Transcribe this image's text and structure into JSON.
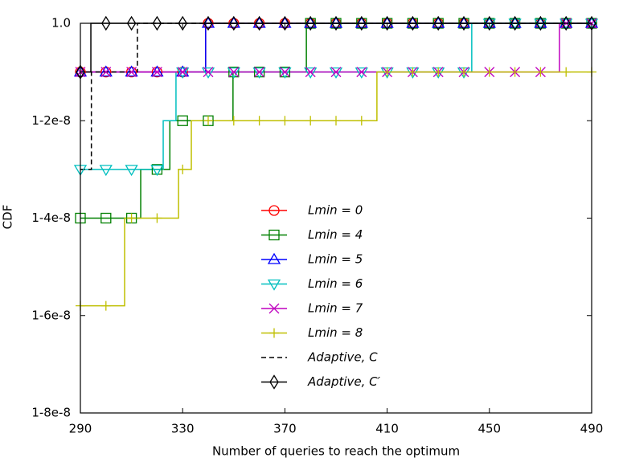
{
  "chart_data": {
    "type": "step",
    "xlabel": "Number of queries to reach the optimum",
    "ylabel": "CDF",
    "xlim": [
      290,
      490
    ],
    "xticks": [
      290,
      330,
      370,
      410,
      450,
      490
    ],
    "ylim": [
      0.99999992,
      1
    ],
    "yticks": [
      {
        "value": 0.99999992,
        "label": "1-8e-8"
      },
      {
        "value": 0.99999994,
        "label": "1-6e-8"
      },
      {
        "value": 0.99999996,
        "label": "1-4e-8"
      },
      {
        "value": 0.99999998,
        "label": "1-2e-8"
      },
      {
        "value": 1,
        "label": "1.0"
      }
    ],
    "legend": "center",
    "markevery": 10,
    "series": [
      {
        "name": "Lmin = 0",
        "color": "#ff0000",
        "marker": "circle",
        "linestyle": "solid",
        "x": [
          290,
          300,
          310,
          320,
          330,
          339,
          340,
          350,
          360,
          370,
          380,
          390,
          400,
          410,
          420,
          430,
          440,
          450,
          460,
          470,
          480,
          490
        ],
        "values": [
          0.99999999,
          0.99999999,
          0.99999999,
          0.99999999,
          0.99999999,
          1,
          1,
          1,
          1,
          1,
          1,
          1,
          1,
          1,
          1,
          1,
          1,
          1,
          1,
          1,
          1,
          1
        ]
      },
      {
        "name": "Lmin = 4",
        "color": "#008000",
        "marker": "square",
        "linestyle": "solid",
        "x": [
          290,
          300,
          310,
          313.6,
          320,
          325,
          330,
          340,
          349.7,
          350,
          360,
          370,
          378.4,
          380,
          390,
          400,
          410,
          420,
          430,
          440,
          450,
          460,
          470,
          480,
          490
        ],
        "values": [
          0.99999996,
          0.99999996,
          0.99999996,
          0.99999997,
          0.99999997,
          0.99999998,
          0.99999998,
          0.99999998,
          0.99999999,
          0.99999999,
          0.99999999,
          0.99999999,
          1,
          1,
          1,
          1,
          1,
          1,
          1,
          1,
          1,
          1,
          1,
          1,
          1
        ]
      },
      {
        "name": "Lmin = 5",
        "color": "#0000ff",
        "marker": "triangle-up",
        "linestyle": "solid",
        "x": [
          290,
          300,
          310,
          320,
          330,
          339,
          340,
          350,
          360,
          370,
          380,
          390,
          400,
          410,
          420,
          430,
          440,
          450,
          460,
          470,
          480,
          490
        ],
        "values": [
          0.99999999,
          0.99999999,
          0.99999999,
          0.99999999,
          0.99999999,
          1,
          1,
          1,
          1,
          1,
          1,
          1,
          1,
          1,
          1,
          1,
          1,
          1,
          1,
          1,
          1,
          1
        ]
      },
      {
        "name": "Lmin = 6",
        "color": "#00bfbf",
        "marker": "triangle-down",
        "linestyle": "solid",
        "x": [
          290,
          300,
          310,
          320,
          322.4,
          327.4,
          330,
          340,
          350,
          360,
          370,
          380,
          390,
          400,
          410,
          420,
          430,
          440,
          443.1,
          450,
          460,
          470,
          480,
          490
        ],
        "values": [
          0.99999997,
          0.99999997,
          0.99999997,
          0.99999997,
          0.99999998,
          0.99999999,
          0.99999999,
          0.99999999,
          0.99999999,
          0.99999999,
          0.99999999,
          0.99999999,
          0.99999999,
          0.99999999,
          0.99999999,
          0.99999999,
          0.99999999,
          0.99999999,
          1,
          1,
          1,
          1,
          1,
          1
        ]
      },
      {
        "name": "Lmin = 7",
        "color": "#bf00bf",
        "marker": "x",
        "linestyle": "solid",
        "x": [
          290,
          300,
          310,
          320,
          330,
          340,
          350,
          360,
          370,
          380,
          390,
          400,
          410,
          420,
          430,
          440,
          450,
          460,
          470,
          477.4,
          480,
          490
        ],
        "values": [
          0.99999999,
          0.99999999,
          0.99999999,
          0.99999999,
          0.99999999,
          0.99999999,
          0.99999999,
          0.99999999,
          0.99999999,
          0.99999999,
          0.99999999,
          0.99999999,
          0.99999999,
          0.99999999,
          0.99999999,
          0.99999999,
          0.99999999,
          0.99999999,
          0.99999999,
          1,
          1,
          1
        ]
      },
      {
        "name": "Lmin = 8",
        "color": "#bfbf00",
        "marker": "plus",
        "linestyle": "solid",
        "x": [
          290,
          300,
          307.3,
          310,
          320,
          328.4,
          330,
          333.4,
          340,
          350,
          360,
          370,
          380,
          390,
          400,
          406,
          410,
          420,
          430,
          440,
          450,
          460,
          470,
          480,
          490
        ],
        "values": [
          0.999999942,
          0.999999942,
          0.99999996,
          0.99999996,
          0.99999996,
          0.99999997,
          0.99999997,
          0.99999998,
          0.99999998,
          0.99999998,
          0.99999998,
          0.99999998,
          0.99999998,
          0.99999998,
          0.99999998,
          0.99999999,
          0.99999999,
          0.99999999,
          0.99999999,
          0.99999999,
          0.99999999,
          0.99999999,
          0.99999999,
          0.99999999,
          0.99999999
        ]
      },
      {
        "name": "Adaptive, C",
        "color": "#000000",
        "marker": "none",
        "linestyle": "dashed",
        "x": [
          290,
          294.3,
          312.3,
          490
        ],
        "values": [
          0.99999997,
          0.99999999,
          1,
          1
        ]
      },
      {
        "name": "Adaptive, C′",
        "color": "#000000",
        "marker": "diamond",
        "linestyle": "solid",
        "x": [
          290,
          294.1,
          300,
          310,
          320,
          330,
          340,
          350,
          360,
          370,
          380,
          390,
          400,
          410,
          420,
          430,
          440,
          450,
          460,
          470,
          480,
          490
        ],
        "values": [
          0.99999999,
          1,
          1,
          1,
          1,
          1,
          1,
          1,
          1,
          1,
          1,
          1,
          1,
          1,
          1,
          1,
          1,
          1,
          1,
          1,
          1,
          1
        ]
      }
    ]
  }
}
